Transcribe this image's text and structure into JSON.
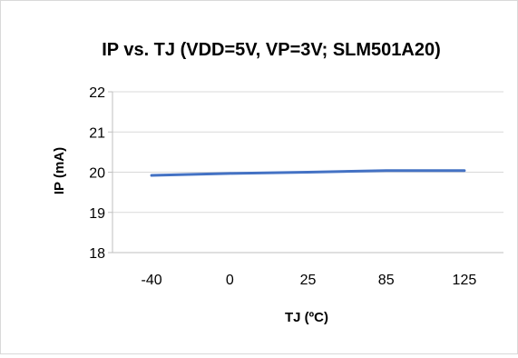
{
  "chart_data": {
    "type": "line",
    "title": "IP vs. TJ (VDD=5V, VP=3V; SLM501A20)",
    "xlabel": "TJ (ºC)",
    "ylabel": "IP (mA)",
    "categories": [
      "-40",
      "0",
      "25",
      "85",
      "125"
    ],
    "series": [
      {
        "values": [
          19.92,
          19.97,
          20.0,
          20.04,
          20.04
        ],
        "color": "#4472c4"
      }
    ],
    "ylim": [
      18,
      22
    ],
    "yticks": [
      "18",
      "19",
      "20",
      "21",
      "22"
    ],
    "grid": true,
    "legend": "none"
  }
}
